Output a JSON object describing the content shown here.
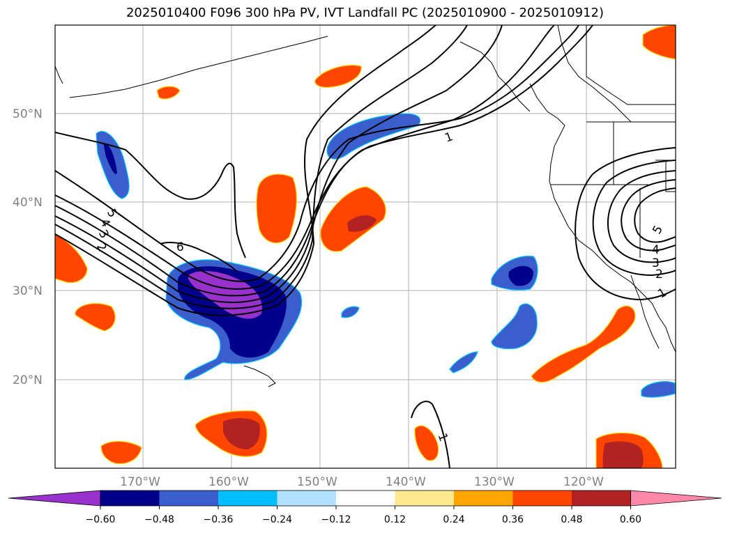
{
  "title": "2025010400 F096 300 hPa PV, IVT Landfall PC (2025010900 - 2025010912)",
  "lat_labels": [
    "50°N",
    "40°N",
    "30°N",
    "20°N"
  ],
  "lon_labels": [
    "170°W",
    "160°W",
    "150°W",
    "140°W",
    "130°W",
    "120°W"
  ],
  "colorbar": {
    "ticks": [
      "−0.60",
      "−0.48",
      "−0.36",
      "−0.24",
      "−0.12",
      "0.12",
      "0.24",
      "0.36",
      "0.48",
      "0.60"
    ],
    "colors": [
      "#9932cc",
      "#00008b",
      "#3a5fcd",
      "#00bfff",
      "#b0e2ff",
      "#ffffff",
      "#ffe98f",
      "#ffa500",
      "#ff4500",
      "#b22222",
      "#ff88aa"
    ]
  },
  "contour_labels": [
    "1",
    "2",
    "3",
    "4",
    "5",
    "6",
    "1",
    "2",
    "3",
    "4",
    "5",
    "1"
  ],
  "colors": {
    "positive_core": "#b22222",
    "positive": "#ff4500",
    "negative": "#3a5fcd",
    "negative_core": "#00008b",
    "negative_max": "#9932cc"
  }
}
